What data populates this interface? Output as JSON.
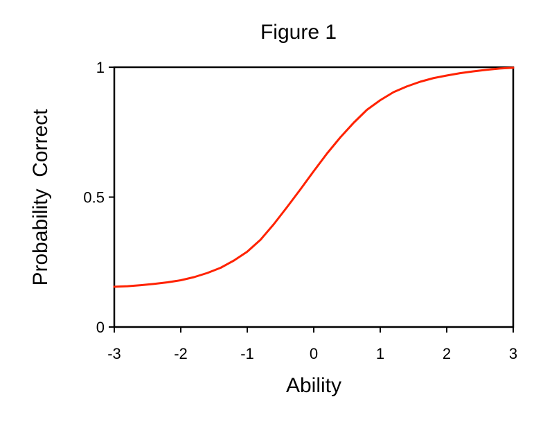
{
  "chart_data": {
    "type": "line",
    "title": "Figure 1",
    "xlabel": "Ability",
    "ylabel": "Probability  Correct",
    "xlim": [
      -3,
      3
    ],
    "ylim": [
      0,
      1
    ],
    "x_ticks": [
      "-3",
      "-2",
      "-1",
      "0",
      "1",
      "2",
      "3"
    ],
    "y_ticks": [
      "0",
      "0.5",
      "1"
    ],
    "grid": false,
    "legend": "none",
    "series": [
      {
        "color": "#ff2200",
        "x": [
          -3.0,
          -2.8,
          -2.6,
          -2.4,
          -2.2,
          -2.0,
          -1.8,
          -1.6,
          -1.4,
          -1.2,
          -1.0,
          -0.8,
          -0.6,
          -0.4,
          -0.2,
          0.0,
          0.2,
          0.4,
          0.6,
          0.8,
          1.0,
          1.2,
          1.4,
          1.6,
          1.8,
          2.0,
          2.2,
          2.4,
          2.6,
          2.8,
          3.0
        ],
        "y": [
          0.155,
          0.157,
          0.161,
          0.166,
          0.172,
          0.18,
          0.192,
          0.208,
          0.228,
          0.256,
          0.29,
          0.336,
          0.396,
          0.462,
          0.53,
          0.6,
          0.668,
          0.73,
          0.786,
          0.836,
          0.873,
          0.904,
          0.926,
          0.944,
          0.958,
          0.968,
          0.977,
          0.984,
          0.99,
          0.995,
          0.998
        ]
      }
    ]
  }
}
